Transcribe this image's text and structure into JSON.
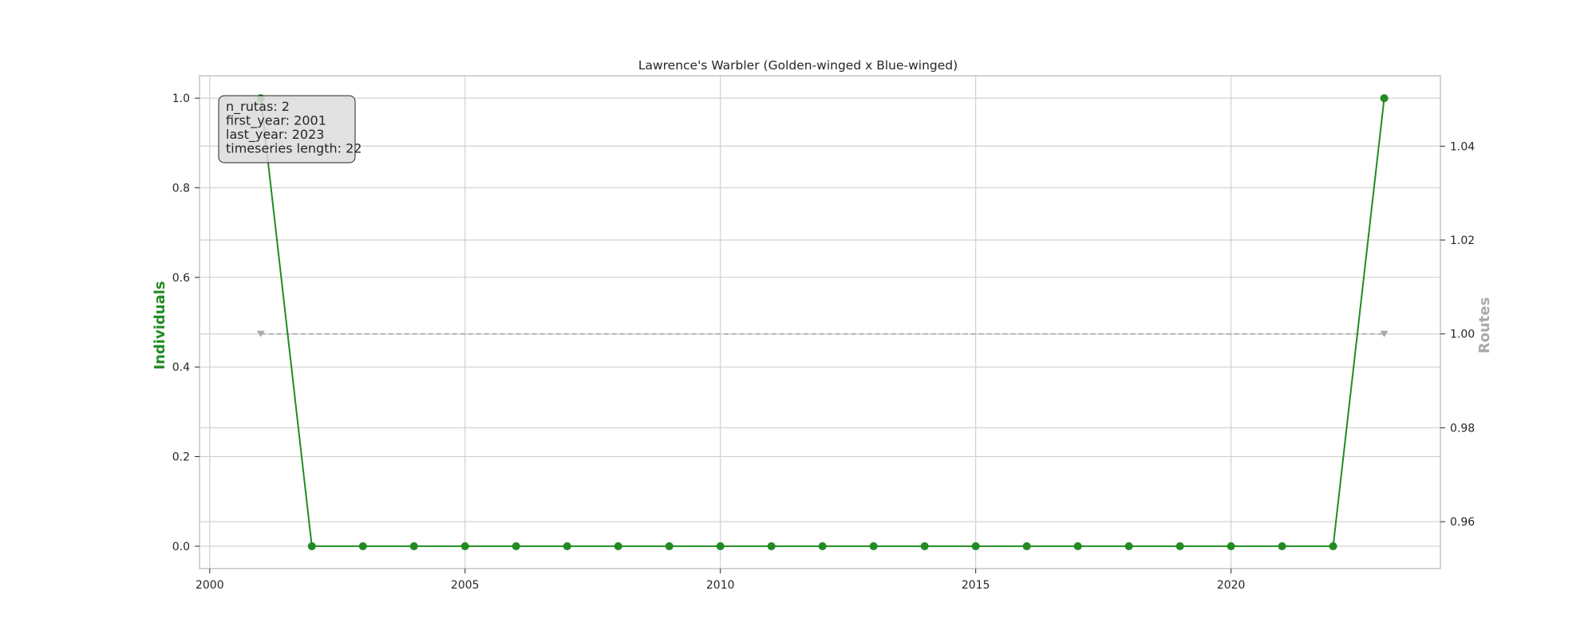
{
  "chart_data": {
    "type": "line",
    "title": "Lawrence's Warbler (Golden-winged x Blue-winged)",
    "xlabel": "",
    "ylabel": "Individuals",
    "y2label": "Routes",
    "xlim": [
      1999.8,
      2024.1
    ],
    "ylim": [
      -0.05,
      1.05
    ],
    "y2lim": [
      0.95,
      1.055
    ],
    "xticks": [
      2000,
      2005,
      2010,
      2015,
      2020
    ],
    "yticks": [
      0.0,
      0.2,
      0.4,
      0.6,
      0.8,
      1.0
    ],
    "y2ticks": [
      0.96,
      0.98,
      1.0,
      1.02,
      1.04
    ],
    "grid": true,
    "series": [
      {
        "name": "Individuals",
        "axis": "left",
        "color": "#228B22",
        "marker": "circle",
        "x": [
          2001,
          2002,
          2003,
          2004,
          2005,
          2006,
          2007,
          2008,
          2009,
          2010,
          2011,
          2012,
          2013,
          2014,
          2015,
          2016,
          2017,
          2018,
          2019,
          2020,
          2021,
          2022,
          2023
        ],
        "values": [
          1.0,
          0,
          0,
          0,
          0,
          0,
          0,
          0,
          0,
          0,
          0,
          0,
          0,
          0,
          0,
          0,
          0,
          0,
          0,
          0,
          0,
          0,
          1.0
        ]
      },
      {
        "name": "Routes",
        "axis": "right",
        "color": "#A9A9A9",
        "marker": "triangle-down",
        "linestyle": "dashed",
        "x": [
          2001,
          2023
        ],
        "values": [
          1.0,
          1.0
        ]
      }
    ],
    "annotation": {
      "lines": [
        "n_rutas: 2",
        "first_year: 2001",
        "last_year: 2023",
        "timeseries length: 22"
      ],
      "placement": "top-left"
    }
  }
}
